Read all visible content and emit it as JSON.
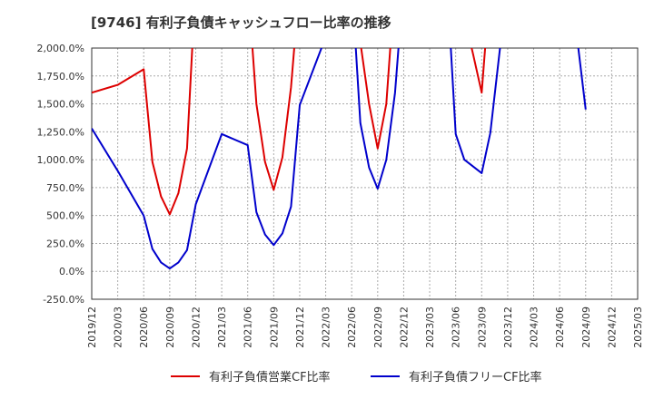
{
  "chart_data": {
    "type": "line",
    "title": "[9746]  有利子負債キャッシュフロー比率の推移",
    "xlabel": "",
    "ylabel": "",
    "ylim": [
      -250,
      2000
    ],
    "yticks": [
      -250,
      0,
      250,
      500,
      750,
      1000,
      1250,
      1500,
      1750,
      2000
    ],
    "ytick_labels": [
      "-250.0%",
      "0.0%",
      "250.0%",
      "500.0%",
      "750.0%",
      "1,000.0%",
      "1,250.0%",
      "1,500.0%",
      "1,750.0%",
      "2,000.0%"
    ],
    "xlim": [
      "2019/12",
      "2025/03"
    ],
    "xtick_labels": [
      "2019/12",
      "2020/03",
      "2020/06",
      "2020/09",
      "2020/12",
      "2021/03",
      "2021/06",
      "2021/09",
      "2021/12",
      "2022/03",
      "2022/06",
      "2022/09",
      "2022/12",
      "2023/03",
      "2023/06",
      "2023/09",
      "2023/12",
      "2024/03",
      "2024/06",
      "2024/09",
      "2024/12",
      "2025/03"
    ],
    "grid": true,
    "legend": "bottom",
    "series": [
      {
        "name": "有利子負債営業CF比率",
        "color": "#dd0000",
        "points": [
          [
            "2019/12",
            1600
          ],
          [
            "2020/03",
            1670
          ],
          [
            "2020/06",
            1810
          ],
          [
            "2020/07",
            980
          ],
          [
            "2020/08",
            670
          ],
          [
            "2020/09",
            510
          ],
          [
            "2020/10",
            700
          ],
          [
            "2020/11",
            1100
          ],
          [
            "2020/12",
            2600
          ],
          null,
          [
            "2021/06",
            2600
          ],
          [
            "2021/07",
            1500
          ],
          [
            "2021/08",
            980
          ],
          [
            "2021/09",
            730
          ],
          [
            "2021/10",
            1020
          ],
          [
            "2021/11",
            1650
          ],
          [
            "2021/12",
            2600
          ],
          null,
          [
            "2022/06",
            2600
          ],
          [
            "2022/08",
            1500
          ],
          [
            "2022/09",
            1100
          ],
          [
            "2022/10",
            1500
          ],
          [
            "2022/11",
            2600
          ],
          null,
          [
            "2023/06",
            2600
          ],
          [
            "2023/08",
            1950
          ],
          [
            "2023/09",
            1600
          ],
          [
            "2023/10",
            2600
          ]
        ]
      },
      {
        "name": "有利子負債フリーCF比率",
        "color": "#0000cc",
        "points": [
          [
            "2019/12",
            1280
          ],
          [
            "2020/03",
            900
          ],
          [
            "2020/06",
            500
          ],
          [
            "2020/07",
            200
          ],
          [
            "2020/08",
            80
          ],
          [
            "2020/09",
            25
          ],
          [
            "2020/10",
            80
          ],
          [
            "2020/11",
            190
          ],
          [
            "2020/12",
            600
          ],
          [
            "2021/03",
            1230
          ],
          [
            "2021/06",
            1130
          ],
          [
            "2021/07",
            530
          ],
          [
            "2021/08",
            330
          ],
          [
            "2021/09",
            235
          ],
          [
            "2021/10",
            340
          ],
          [
            "2021/11",
            580
          ],
          [
            "2021/12",
            1490
          ],
          [
            "2022/03",
            2100
          ],
          [
            "2022/06",
            2600
          ],
          [
            "2022/07",
            1330
          ],
          [
            "2022/08",
            930
          ],
          [
            "2022/09",
            740
          ],
          [
            "2022/10",
            1000
          ],
          [
            "2022/11",
            1600
          ],
          [
            "2022/12",
            2600
          ],
          null,
          [
            "2023/05",
            2600
          ],
          [
            "2023/06",
            1230
          ],
          [
            "2023/07",
            1000
          ],
          [
            "2023/09",
            880
          ],
          [
            "2023/10",
            1240
          ],
          [
            "2023/12",
            2600
          ],
          null,
          [
            "2024/05",
            2600
          ],
          [
            "2024/08",
            2100
          ],
          [
            "2024/09",
            1450
          ]
        ]
      }
    ]
  }
}
